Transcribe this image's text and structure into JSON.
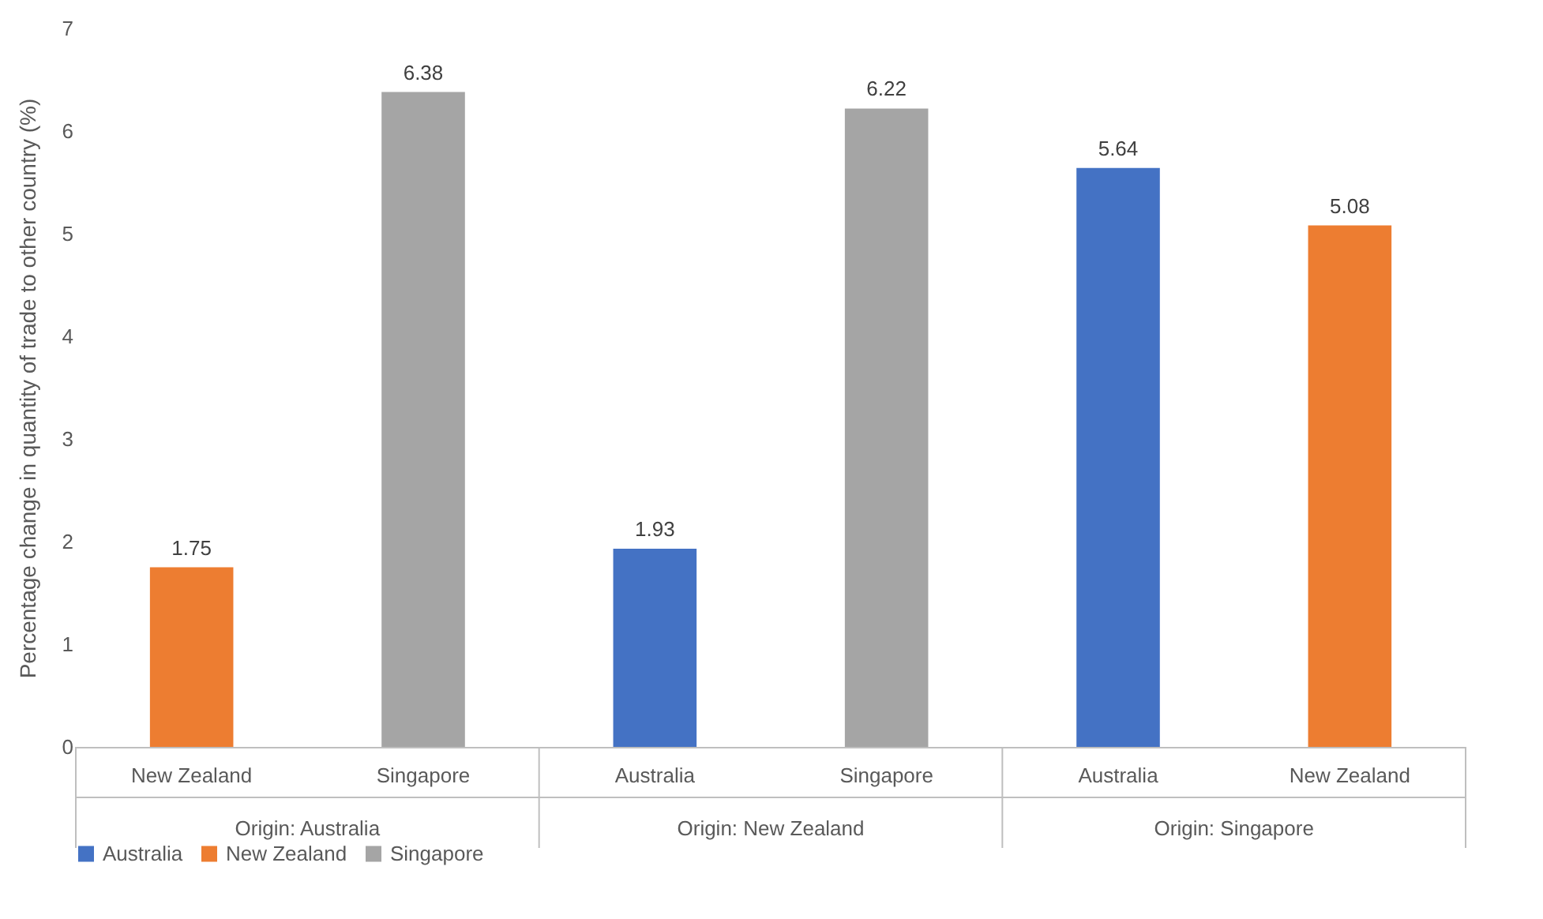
{
  "chart_data": {
    "type": "bar",
    "ylabel": "Percentage change in quantity of trade to other country (%)",
    "categories": [
      "New Zealand",
      "Singapore",
      "Australia",
      "Singapore",
      "Australia",
      "New Zealand"
    ],
    "series": [
      {
        "name": "Australia",
        "color": "#4472c4",
        "values": [
          null,
          null,
          1.93,
          null,
          5.64,
          null
        ]
      },
      {
        "name": "New Zealand",
        "color": "#ed7d31",
        "values": [
          1.75,
          null,
          null,
          null,
          null,
          5.08
        ]
      },
      {
        "name": "Singapore",
        "color": "#a5a5a5",
        "values": [
          null,
          6.38,
          null,
          6.22,
          null,
          null
        ]
      }
    ],
    "annotations": [
      "Origin: Australia",
      "Origin: New Zealand",
      "Origin: Singapore"
    ],
    "ylim": [
      0,
      7
    ],
    "yticks": [
      0,
      1,
      2,
      3,
      4,
      5,
      6,
      7
    ],
    "grid": false,
    "legend": "bottom",
    "data_labels": true
  }
}
